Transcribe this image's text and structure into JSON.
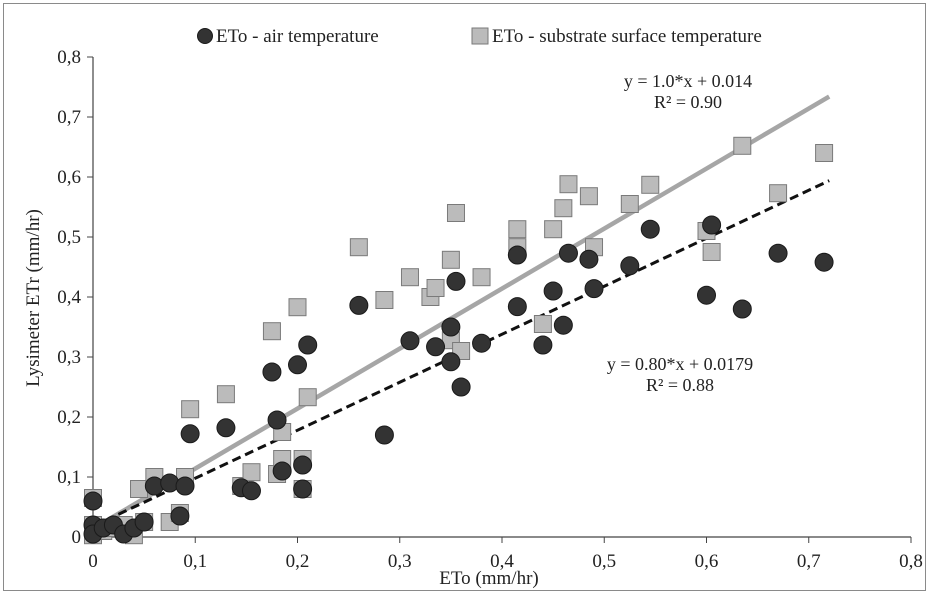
{
  "chart_data": {
    "type": "scatter",
    "title": "",
    "xlabel": "ETo (mm/hr)",
    "ylabel": "Lysimeter ETr (mm/hr)",
    "xlim": [
      0,
      0.8
    ],
    "ylim": [
      0,
      0.8
    ],
    "xticks": [
      "0",
      "0,1",
      "0,2",
      "0,3",
      "0,4",
      "0,5",
      "0,6",
      "0,7",
      "0,8"
    ],
    "yticks": [
      "0",
      "0,1",
      "0,2",
      "0,3",
      "0,4",
      "0,5",
      "0,6",
      "0,7",
      "0,8"
    ],
    "grid": false,
    "legend_position": "top",
    "series": [
      {
        "name": "ETo - air temperature",
        "marker": "circle",
        "color": "#333333",
        "points": [
          [
            0,
            0.06
          ],
          [
            0,
            0.02
          ],
          [
            0,
            0.005
          ],
          [
            0.01,
            0.015
          ],
          [
            0.02,
            0.02
          ],
          [
            0.03,
            0.005
          ],
          [
            0.04,
            0.015
          ],
          [
            0.05,
            0.025
          ],
          [
            0.06,
            0.085
          ],
          [
            0.075,
            0.09
          ],
          [
            0.085,
            0.035
          ],
          [
            0.09,
            0.085
          ],
          [
            0.095,
            0.172
          ],
          [
            0.13,
            0.182
          ],
          [
            0.145,
            0.082
          ],
          [
            0.155,
            0.077
          ],
          [
            0.175,
            0.275
          ],
          [
            0.18,
            0.195
          ],
          [
            0.185,
            0.11
          ],
          [
            0.2,
            0.287
          ],
          [
            0.205,
            0.12
          ],
          [
            0.205,
            0.08
          ],
          [
            0.21,
            0.32
          ],
          [
            0.26,
            0.386
          ],
          [
            0.285,
            0.17
          ],
          [
            0.31,
            0.327
          ],
          [
            0.335,
            0.317
          ],
          [
            0.35,
            0.35
          ],
          [
            0.35,
            0.292
          ],
          [
            0.355,
            0.426
          ],
          [
            0.36,
            0.25
          ],
          [
            0.38,
            0.323
          ],
          [
            0.415,
            0.384
          ],
          [
            0.415,
            0.47
          ],
          [
            0.44,
            0.32
          ],
          [
            0.45,
            0.41
          ],
          [
            0.46,
            0.353
          ],
          [
            0.465,
            0.473
          ],
          [
            0.485,
            0.463
          ],
          [
            0.49,
            0.414
          ],
          [
            0.525,
            0.452
          ],
          [
            0.545,
            0.513
          ],
          [
            0.6,
            0.403
          ],
          [
            0.605,
            0.52
          ],
          [
            0.635,
            0.38
          ],
          [
            0.67,
            0.473
          ],
          [
            0.715,
            0.458
          ]
        ]
      },
      {
        "name": "ETo - substrate surface temperature",
        "marker": "square",
        "color": "#bbbbbb",
        "points": [
          [
            0,
            0.065
          ],
          [
            0,
            0.02
          ],
          [
            0,
            0.003
          ],
          [
            0.01,
            0.01
          ],
          [
            0.02,
            0.015
          ],
          [
            0.03,
            0.02
          ],
          [
            0.04,
            0.003
          ],
          [
            0.045,
            0.08
          ],
          [
            0.05,
            0.025
          ],
          [
            0.06,
            0.1
          ],
          [
            0.075,
            0.025
          ],
          [
            0.085,
            0.04
          ],
          [
            0.09,
            0.1
          ],
          [
            0.095,
            0.213
          ],
          [
            0.13,
            0.238
          ],
          [
            0.145,
            0.085
          ],
          [
            0.155,
            0.108
          ],
          [
            0.175,
            0.343
          ],
          [
            0.18,
            0.105
          ],
          [
            0.185,
            0.175
          ],
          [
            0.185,
            0.13
          ],
          [
            0.2,
            0.383
          ],
          [
            0.205,
            0.13
          ],
          [
            0.205,
            0.08
          ],
          [
            0.21,
            0.233
          ],
          [
            0.26,
            0.483
          ],
          [
            0.285,
            0.395
          ],
          [
            0.31,
            0.433
          ],
          [
            0.33,
            0.4
          ],
          [
            0.335,
            0.415
          ],
          [
            0.35,
            0.462
          ],
          [
            0.35,
            0.328
          ],
          [
            0.355,
            0.54
          ],
          [
            0.36,
            0.31
          ],
          [
            0.38,
            0.433
          ],
          [
            0.415,
            0.513
          ],
          [
            0.415,
            0.483
          ],
          [
            0.44,
            0.355
          ],
          [
            0.45,
            0.513
          ],
          [
            0.46,
            0.548
          ],
          [
            0.465,
            0.588
          ],
          [
            0.485,
            0.568
          ],
          [
            0.49,
            0.483
          ],
          [
            0.525,
            0.555
          ],
          [
            0.545,
            0.587
          ],
          [
            0.6,
            0.51
          ],
          [
            0.605,
            0.475
          ],
          [
            0.635,
            0.652
          ],
          [
            0.67,
            0.573
          ],
          [
            0.715,
            0.64
          ]
        ]
      }
    ],
    "trendlines": [
      {
        "series": "ETo - substrate surface temperature",
        "slope": 1.0,
        "intercept": 0.014,
        "x_range": [
          0,
          0.72
        ],
        "color": "#a6a6a6",
        "style": "solid",
        "equation": "y = 1.0*x + 0.014",
        "r2": "R² = 0.90"
      },
      {
        "series": "ETo - air temperature",
        "slope": 0.8,
        "intercept": 0.0179,
        "x_range": [
          0,
          0.72
        ],
        "color": "#111111",
        "style": "dashed",
        "equation": "y = 0.80*x + 0.0179",
        "r2": "R² = 0.88"
      }
    ]
  }
}
